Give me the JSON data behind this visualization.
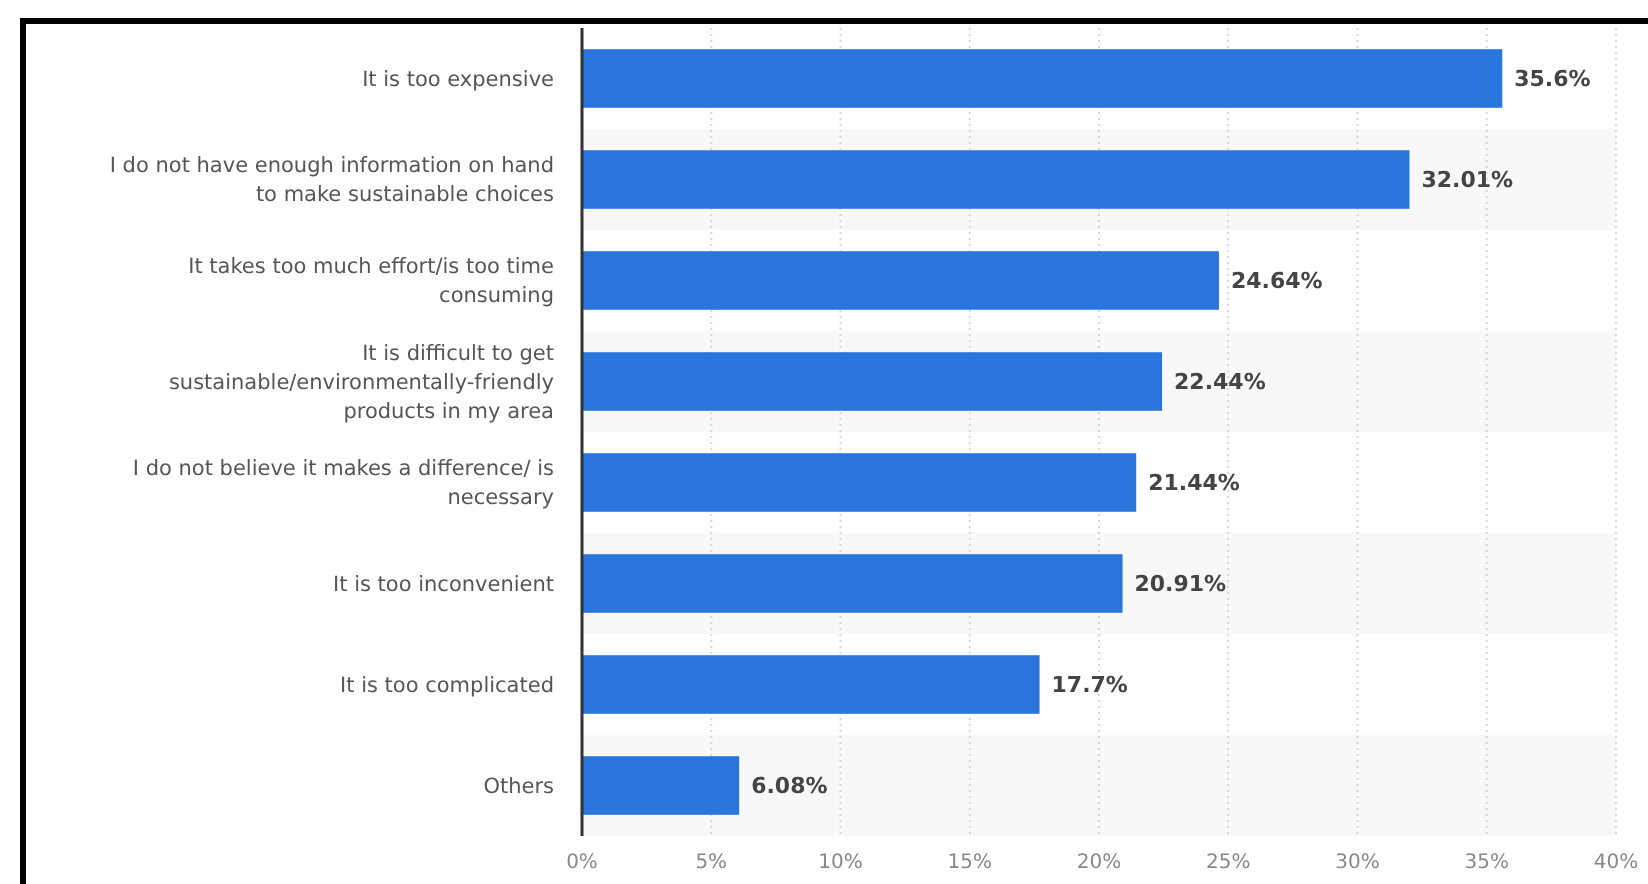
{
  "chart_data": {
    "type": "bar",
    "orientation": "horizontal",
    "categories": [
      "It is too expensive",
      "I do not have enough information on hand to make sustainable choices",
      "It takes too much effort/is too time consuming",
      "It is difficult to get sustainable/environmentally-friendly products in my area",
      "I do not believe it makes a difference/ is necessary",
      "It is too inconvenient",
      "It is too complicated",
      "Others"
    ],
    "values": [
      35.6,
      32.01,
      24.64,
      22.44,
      21.44,
      20.91,
      17.7,
      6.08
    ],
    "color": "#2a75db",
    "value_labels": [
      "35.6%",
      "32.01%",
      "24.64%",
      "22.44%",
      "21.44%",
      "20.91%",
      "17.7%",
      "6.08%"
    ],
    "xlim": [
      0,
      40
    ],
    "xticks": [
      {
        "value": 0,
        "label": "0%"
      },
      {
        "value": 5,
        "label": "5%"
      },
      {
        "value": 10,
        "label": "10%"
      },
      {
        "value": 15,
        "label": "15%"
      },
      {
        "value": 20,
        "label": "20%"
      },
      {
        "value": 25,
        "label": "25%"
      },
      {
        "value": 30,
        "label": "30%"
      },
      {
        "value": 35,
        "label": "35%"
      },
      {
        "value": 40,
        "label": "40%"
      }
    ],
    "grid": "x"
  }
}
